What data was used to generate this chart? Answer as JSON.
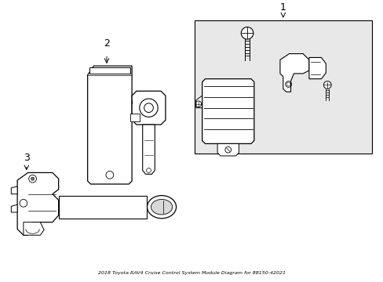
{
  "title": "2018 Toyota RAV4 Cruise Control System Module Diagram for 88150-42021",
  "background_color": "#ffffff",
  "box1_color": "#e8e8e8",
  "line_color": "#000000",
  "part_numbers": [
    "1",
    "2",
    "3"
  ],
  "figsize": [
    4.89,
    3.6
  ],
  "dpi": 100
}
